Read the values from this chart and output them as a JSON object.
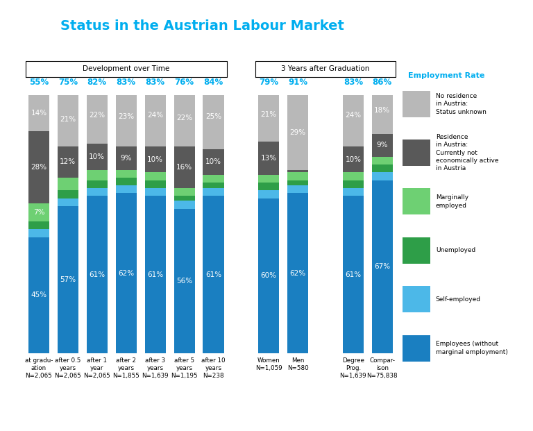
{
  "title": "Status in the Austrian Labour Market",
  "title_color": "#00AEEF",
  "group1_label": "Development over Time",
  "group2_label": "3 Years after Graduation",
  "employment_rate_label": "Employment Rate",
  "bar_labels": [
    [
      "at gradu-",
      "ation",
      "N=2,065"
    ],
    [
      "after 0.5",
      "years",
      "N=2,065"
    ],
    [
      "after 1",
      "year",
      "N=2,065"
    ],
    [
      "after 2",
      "years",
      "N=1,855"
    ],
    [
      "after 3",
      "years",
      "N=1,639"
    ],
    [
      "after 5",
      "years",
      "N=1,195"
    ],
    [
      "after 10",
      "years",
      "N=238"
    ],
    [
      "Women",
      "N=1,059",
      ""
    ],
    [
      "Men",
      "N=580",
      ""
    ],
    [
      "Degree",
      "Prog.",
      "N=1,639"
    ],
    [
      "Compar-",
      "ison",
      "N=75,838"
    ]
  ],
  "employment_rates": [
    "55%",
    "75%",
    "82%",
    "83%",
    "83%",
    "76%",
    "84%",
    "79%",
    "91%",
    "83%",
    "86%"
  ],
  "seg_order": [
    "employees",
    "self_employed",
    "unemployed",
    "marginally_employed",
    "not_active",
    "no_residence"
  ],
  "segments": {
    "employees": {
      "label": "Employees (without\nmarginal employment)",
      "color": "#1A7FC1",
      "values": [
        45,
        57,
        61,
        62,
        61,
        56,
        61,
        60,
        62,
        61,
        67
      ]
    },
    "self_employed": {
      "label": "Self-employed",
      "color": "#4CB8E8",
      "values": [
        3,
        3,
        3,
        3,
        3,
        3,
        3,
        3,
        3,
        3,
        3
      ]
    },
    "unemployed": {
      "label": "Unemployed",
      "color": "#2E9E48",
      "values": [
        3,
        3,
        3,
        3,
        3,
        2,
        2,
        3,
        2,
        3,
        3
      ]
    },
    "marginally_employed": {
      "label": "Marginally\nemployed",
      "color": "#6ED073",
      "values": [
        7,
        5,
        4,
        3,
        3,
        3,
        3,
        3,
        3,
        3,
        3
      ]
    },
    "not_active": {
      "label": "Residence\nin Austria:\nCurrently not\neconomically active\nin Austria",
      "color": "#595959",
      "values": [
        28,
        12,
        10,
        9,
        10,
        16,
        10,
        13,
        1,
        10,
        9
      ]
    },
    "no_residence": {
      "label": "No residence\nin Austria:\nStatus unknown",
      "color": "#B8B8B8",
      "values": [
        14,
        21,
        22,
        23,
        24,
        22,
        25,
        21,
        29,
        24,
        18
      ]
    }
  },
  "legend_entries": [
    {
      "label": "No residence\nin Austria:\nStatus unknown",
      "color": "#B8B8B8"
    },
    {
      "label": "Residence\nin Austria:\nCurrently not\neconomically active\nin Austria",
      "color": "#595959"
    },
    {
      "label": "Marginally\nemployed",
      "color": "#6ED073"
    },
    {
      "label": "Unemployed",
      "color": "#2E9E48"
    },
    {
      "label": "Self-employed",
      "color": "#4CB8E8"
    },
    {
      "label": "Employees (without\nmarginal employment)",
      "color": "#1A7FC1"
    }
  ],
  "background_color": "#FFFFFF",
  "bar_width": 0.72
}
